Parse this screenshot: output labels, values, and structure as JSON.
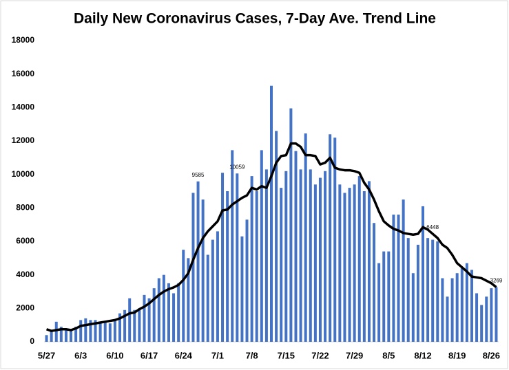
{
  "chart_data": {
    "type": "bar",
    "title": "Daily New Coronavirus Cases, 7-Day Ave. Trend Line",
    "categories": [
      "5/27",
      null,
      null,
      null,
      null,
      null,
      null,
      "6/3",
      null,
      null,
      null,
      null,
      null,
      null,
      "6/10",
      null,
      null,
      null,
      null,
      null,
      null,
      "6/17",
      null,
      null,
      null,
      null,
      null,
      null,
      "6/24",
      null,
      null,
      null,
      null,
      null,
      null,
      "7/1",
      null,
      null,
      null,
      null,
      null,
      null,
      "7/8",
      null,
      null,
      null,
      null,
      null,
      null,
      "7/15",
      null,
      null,
      null,
      null,
      null,
      null,
      "7/22",
      null,
      null,
      null,
      null,
      null,
      null,
      "7/29",
      null,
      null,
      null,
      null,
      null,
      null,
      "8/5",
      null,
      null,
      null,
      null,
      null,
      null,
      "8/12",
      null,
      null,
      null,
      null,
      null,
      null,
      "8/19",
      null,
      null,
      null,
      null,
      null,
      null,
      "8/26",
      null
    ],
    "series": [
      {
        "type": "bar",
        "color": "#4472c4",
        "values": [
          400,
          700,
          1200,
          900,
          800,
          700,
          900,
          1300,
          1400,
          1300,
          1300,
          1100,
          1200,
          1100,
          1300,
          1700,
          1900,
          2600,
          1900,
          2000,
          2800,
          2600,
          3200,
          3800,
          4000,
          3500,
          2900,
          3500,
          5500,
          5000,
          8900,
          9585,
          8500,
          5200,
          6100,
          6600,
          10100,
          9000,
          11450,
          10059,
          6300,
          7300,
          9900,
          9000,
          11450,
          10300,
          15300,
          12600,
          9200,
          10200,
          13950,
          11400,
          10300,
          12450,
          10300,
          9400,
          9800,
          10200,
          12400,
          12200,
          9400,
          8900,
          9200,
          9400,
          9900,
          9000,
          9600,
          7100,
          4700,
          5400,
          5400,
          7600,
          7600,
          8500,
          6200,
          4100,
          5800,
          8100,
          6200,
          6100,
          6000,
          3800,
          2700,
          3800,
          4100,
          4400,
          4700,
          4300,
          2900,
          2200,
          2700,
          3200,
          3269
        ],
        "value_labels": [
          null,
          null,
          null,
          null,
          null,
          null,
          null,
          null,
          null,
          null,
          null,
          null,
          null,
          null,
          null,
          null,
          null,
          null,
          null,
          null,
          null,
          null,
          null,
          null,
          null,
          null,
          null,
          null,
          null,
          null,
          null,
          "9585",
          null,
          null,
          null,
          null,
          null,
          null,
          null,
          "10059",
          null,
          null,
          null,
          null,
          null,
          null,
          null,
          null,
          null,
          null,
          null,
          null,
          null,
          null,
          null,
          null,
          null,
          null,
          null,
          null,
          null,
          null,
          null,
          null,
          null,
          null,
          null,
          null,
          null,
          null,
          null,
          null,
          null,
          null,
          null,
          null,
          null,
          null,
          null,
          null,
          null,
          null,
          null,
          null,
          null,
          null,
          null,
          null,
          null,
          null,
          null,
          null,
          null
        ]
      },
      {
        "type": "line",
        "color": "#000000",
        "values": [
          750,
          650,
          700,
          750,
          750,
          700,
          800,
          950,
          1000,
          1050,
          1100,
          1150,
          1200,
          1250,
          1300,
          1400,
          1550,
          1700,
          1750,
          1950,
          2100,
          2300,
          2550,
          2800,
          3000,
          3150,
          3250,
          3400,
          3700,
          4100,
          4900,
          5600,
          6200,
          6600,
          6900,
          7200,
          7850,
          7900,
          8200,
          8400,
          8600,
          8750,
          9200,
          9100,
          9300,
          9200,
          9900,
          10700,
          11100,
          11150,
          11850,
          11850,
          11650,
          11150,
          11150,
          11100,
          10600,
          10700,
          11000,
          10400,
          10300,
          10250,
          10250,
          10200,
          10100,
          9500,
          9100,
          8500,
          7800,
          7200,
          6950,
          6750,
          6650,
          6500,
          6450,
          6400,
          6450,
          6850,
          6700,
          6448,
          6200,
          5800,
          5600,
          5200,
          4700,
          4450,
          4200,
          3900,
          3850,
          3800,
          3650,
          3500,
          3269
        ],
        "value_labels": [
          null,
          null,
          null,
          null,
          null,
          null,
          null,
          null,
          null,
          null,
          null,
          null,
          null,
          null,
          null,
          null,
          null,
          null,
          null,
          null,
          null,
          null,
          null,
          null,
          null,
          null,
          null,
          null,
          null,
          null,
          null,
          null,
          null,
          null,
          null,
          null,
          null,
          null,
          null,
          null,
          null,
          null,
          null,
          null,
          null,
          null,
          null,
          null,
          null,
          null,
          null,
          null,
          null,
          null,
          null,
          null,
          null,
          null,
          null,
          null,
          null,
          null,
          null,
          null,
          null,
          null,
          null,
          null,
          null,
          null,
          null,
          null,
          null,
          null,
          null,
          null,
          null,
          null,
          null,
          "6448",
          null,
          null,
          null,
          null,
          null,
          null,
          null,
          null,
          null,
          null,
          null,
          null,
          "3269"
        ]
      }
    ],
    "ylim": [
      0,
      18000
    ],
    "yticks": [
      0,
      2000,
      4000,
      6000,
      8000,
      10000,
      12000,
      14000,
      16000,
      18000
    ],
    "grid": false
  }
}
